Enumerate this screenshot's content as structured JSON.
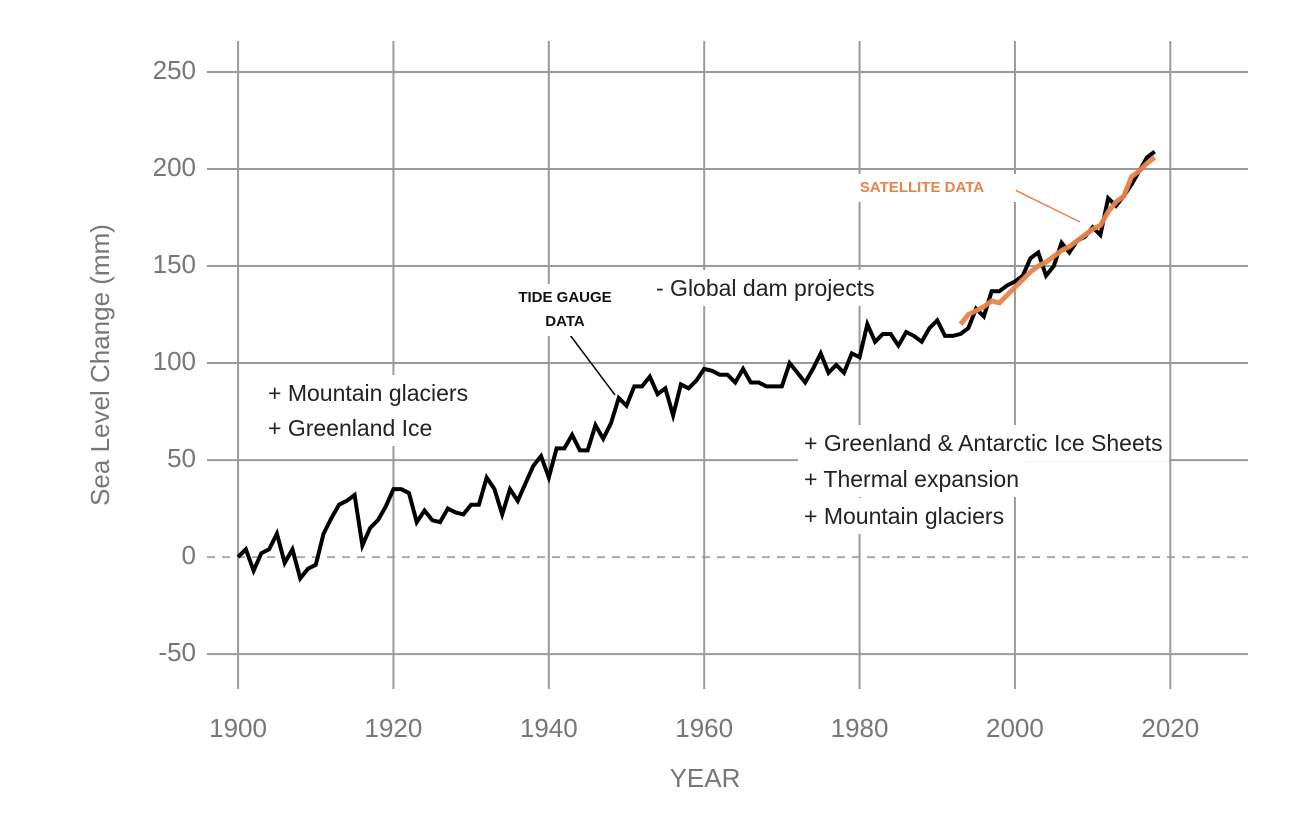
{
  "chart_data": {
    "type": "line",
    "xlabel": "YEAR",
    "ylabel": "Sea Level Change (mm)",
    "xlim": [
      1896,
      2030
    ],
    "xticks": [
      1900,
      1920,
      1940,
      1960,
      1980,
      2000,
      2020
    ],
    "ylim": [
      -68,
      266
    ],
    "yticks": [
      -50,
      0,
      50,
      100,
      150,
      200,
      250
    ],
    "grid": true,
    "zero_line": true,
    "series": [
      {
        "name": "TIDE GAUGE DATA",
        "color": "#000000",
        "x": [
          1900,
          1901,
          1902,
          1903,
          1904,
          1905,
          1906,
          1907,
          1908,
          1909,
          1910,
          1911,
          1912,
          1913,
          1914,
          1915,
          1916,
          1917,
          1918,
          1919,
          1920,
          1921,
          1922,
          1923,
          1924,
          1925,
          1926,
          1927,
          1928,
          1929,
          1930,
          1931,
          1932,
          1933,
          1934,
          1935,
          1936,
          1937,
          1938,
          1939,
          1940,
          1941,
          1942,
          1943,
          1944,
          1945,
          1946,
          1947,
          1948,
          1949,
          1950,
          1951,
          1952,
          1953,
          1954,
          1955,
          1956,
          1957,
          1958,
          1959,
          1960,
          1961,
          1962,
          1963,
          1964,
          1965,
          1966,
          1967,
          1968,
          1969,
          1970,
          1971,
          1972,
          1973,
          1974,
          1975,
          1976,
          1977,
          1978,
          1979,
          1980,
          1981,
          1982,
          1983,
          1984,
          1985,
          1986,
          1987,
          1988,
          1989,
          1990,
          1991,
          1992,
          1993,
          1994,
          1995,
          1996,
          1997,
          1998,
          1999,
          2000,
          2001,
          2002,
          2003,
          2004,
          2005,
          2006,
          2007,
          2008,
          2009,
          2010,
          2011,
          2012,
          2013,
          2014,
          2015,
          2016,
          2017,
          2018
        ],
        "values": [
          0,
          4,
          -7,
          2,
          4,
          12,
          -3,
          4,
          -11,
          -6,
          -4,
          12,
          20,
          27,
          29,
          32,
          6,
          15,
          19,
          26,
          35,
          35,
          33,
          18,
          24,
          19,
          18,
          25,
          23,
          22,
          27,
          27,
          41,
          35,
          22,
          35,
          29,
          38,
          47,
          52,
          41,
          56,
          56,
          63,
          55,
          55,
          68,
          61,
          69,
          82,
          78,
          88,
          88,
          93,
          84,
          87,
          73,
          89,
          87,
          91,
          97,
          96,
          94,
          94,
          90,
          97,
          90,
          90,
          88,
          88,
          88,
          100,
          95,
          90,
          97,
          105,
          95,
          99,
          95,
          105,
          103,
          120,
          111,
          115,
          115,
          109,
          116,
          114,
          111,
          118,
          122,
          114,
          114,
          115,
          118,
          128,
          124,
          137,
          137,
          140,
          142,
          145,
          154,
          157,
          145,
          150,
          162,
          157,
          163,
          165,
          170,
          166,
          185,
          181,
          186,
          192,
          199,
          206,
          209
        ]
      },
      {
        "name": "SATELLITE DATA",
        "color": "#e8834a",
        "x": [
          1993,
          1994,
          1995,
          1996,
          1997,
          1998,
          1999,
          2000,
          2001,
          2002,
          2003,
          2004,
          2005,
          2006,
          2007,
          2008,
          2009,
          2010,
          2011,
          2012,
          2013,
          2014,
          2015,
          2016,
          2017,
          2018
        ],
        "values": [
          120,
          125,
          127,
          129,
          132,
          131,
          135,
          139,
          143,
          147,
          150,
          152,
          155,
          158,
          160,
          163,
          166,
          169,
          171,
          178,
          183,
          186,
          196,
          199,
          203,
          206
        ]
      }
    ],
    "annotations": [
      "+ Mountain glaciers",
      "+ Greenland Ice",
      "- Global dam projects",
      "+ Greenland & Antarctic Ice Sheets",
      "+ Thermal expansion",
      "+ Mountain glaciers"
    ]
  }
}
